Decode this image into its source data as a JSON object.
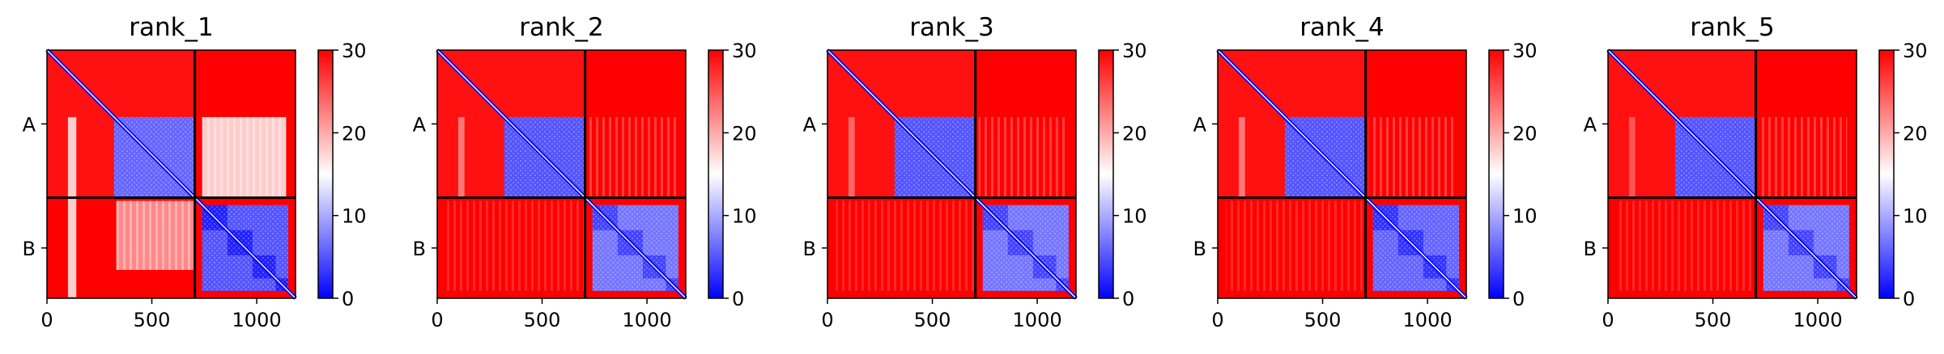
{
  "chart_data": {
    "type": "heatmap",
    "description_colormap": "bwr",
    "colormap": {
      "low": "#0000ff",
      "mid": "#ffffff",
      "high": "#ff0000"
    },
    "clim": [
      0,
      30
    ],
    "colorbar_ticks": [
      "0",
      "10",
      "20",
      "30"
    ],
    "x_ticks": [
      0,
      500,
      1000
    ],
    "x_tick_labels": [
      "0",
      "500",
      "1000"
    ],
    "xlim": [
      0,
      1185
    ],
    "chains": [
      {
        "label": "A",
        "start": 0,
        "end": 705
      },
      {
        "label": "B",
        "start": 705,
        "end": 1185
      }
    ],
    "domains": [
      {
        "chain": "A",
        "start": 320,
        "end": 705
      },
      {
        "chain": "B",
        "start": 740,
        "end": 1150
      }
    ],
    "panels": [
      {
        "title": "rank_1",
        "intra_A_error": 6,
        "intra_B_error": 5,
        "inter_error": 22,
        "structured_inter": true
      },
      {
        "title": "rank_2",
        "intra_A_error": 5,
        "intra_B_error": 7,
        "inter_error": 27,
        "structured_inter": false
      },
      {
        "title": "rank_3",
        "intra_A_error": 5,
        "intra_B_error": 7,
        "inter_error": 28,
        "structured_inter": false
      },
      {
        "title": "rank_4",
        "intra_A_error": 5,
        "intra_B_error": 6,
        "inter_error": 27,
        "structured_inter": false
      },
      {
        "title": "rank_5",
        "intra_A_error": 5,
        "intra_B_error": 7,
        "inter_error": 29,
        "structured_inter": false
      }
    ]
  }
}
